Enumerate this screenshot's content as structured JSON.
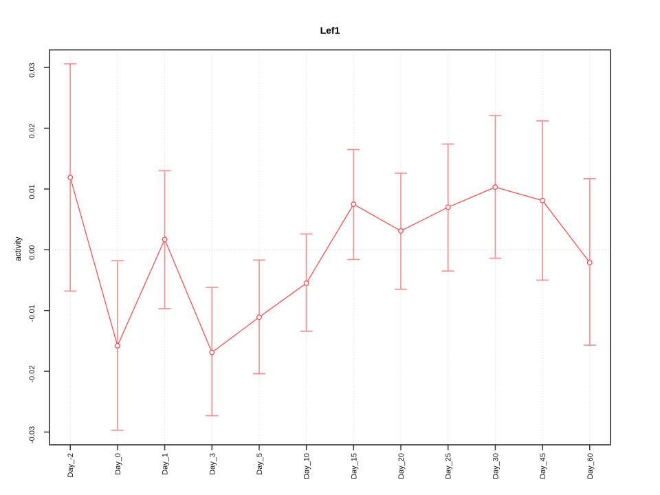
{
  "chart_data": {
    "type": "line",
    "subtype": "point-estimates-with-error-bars",
    "title": "Lef1",
    "xlabel": "",
    "ylabel": "activity",
    "legend": "none",
    "grid": "dotted vertical gridline at each category; dotted horizontal reference line at 0",
    "refline_y": 0,
    "categories": [
      "Day_-2",
      "Day_0",
      "Day_1",
      "Day_3",
      "Day_5",
      "Day_10",
      "Day_15",
      "Day_20",
      "Day_25",
      "Day_30",
      "Day_45",
      "Day_60"
    ],
    "series": [
      {
        "name": "mean",
        "values": [
          0.0119,
          -0.0158,
          0.0017,
          -0.0169,
          -0.0111,
          -0.0055,
          0.0075,
          0.0031,
          0.007,
          0.0103,
          0.0081,
          -0.0021
        ]
      },
      {
        "name": "ci_upper",
        "values": [
          0.0306,
          -0.0018,
          0.013,
          -0.0062,
          -0.0017,
          0.0026,
          0.0165,
          0.0126,
          0.0174,
          0.0221,
          0.0212,
          0.0117
        ]
      },
      {
        "name": "ci_lower",
        "values": [
          -0.0068,
          -0.0297,
          -0.0097,
          -0.0273,
          -0.0204,
          -0.0134,
          -0.0016,
          -0.0065,
          -0.0035,
          -0.0014,
          -0.005,
          -0.0157
        ]
      }
    ],
    "ylim": [
      -0.0321,
      0.0329
    ],
    "yticks": {
      "values": [
        -0.03,
        -0.02,
        -0.01,
        0.0,
        0.01,
        0.02,
        0.03
      ],
      "labels": [
        "-0.03",
        "-0.02",
        "-0.01",
        "0.00",
        "0.01",
        "0.02",
        "0.03"
      ]
    },
    "marker": "open-circle",
    "colors": {
      "line": "#f85050",
      "marker": "#f85050",
      "errorbar": "#f79090",
      "grid": "#c9c9c9",
      "box": "#454545",
      "tick": "#333333",
      "text": "#000000"
    }
  }
}
